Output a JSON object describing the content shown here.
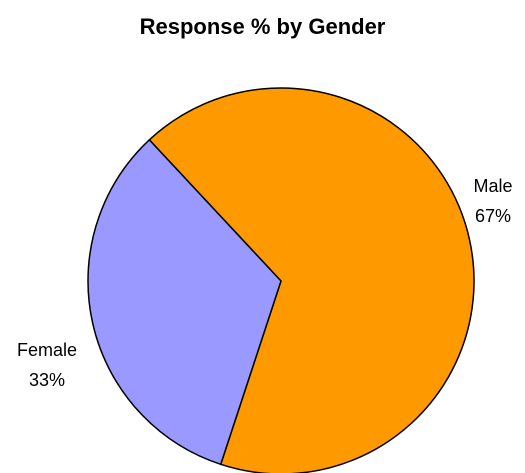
{
  "chart_data": {
    "type": "pie",
    "title": "Response % by Gender",
    "slices": [
      {
        "label": "Male",
        "value_label": "67%",
        "value": 67,
        "color": "#FF9900"
      },
      {
        "label": "Female",
        "value_label": "33%",
        "value": 33,
        "color": "#9999FF"
      }
    ],
    "edge_color": "#000000"
  }
}
